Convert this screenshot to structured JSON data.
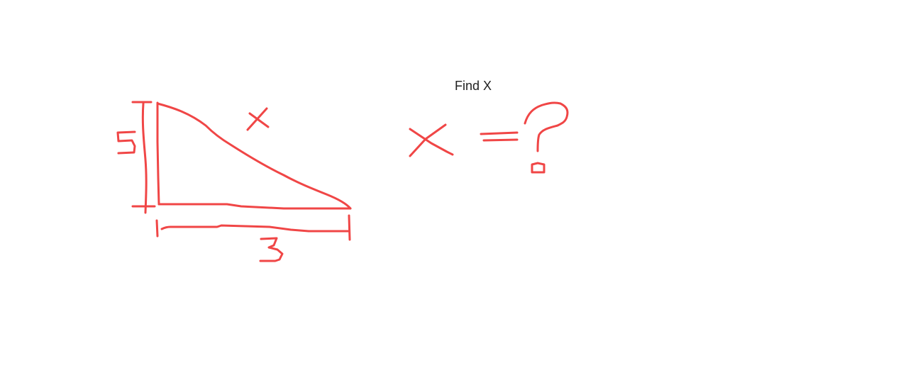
{
  "title": "Find X",
  "ink_color": "#f04646",
  "text_color": "#222222",
  "drawing": {
    "side_vertical_label": "5",
    "side_horizontal_label": "3",
    "hypotenuse_label": "x",
    "equation_lhs": "x",
    "equation_operator": "=",
    "equation_rhs": "?"
  }
}
